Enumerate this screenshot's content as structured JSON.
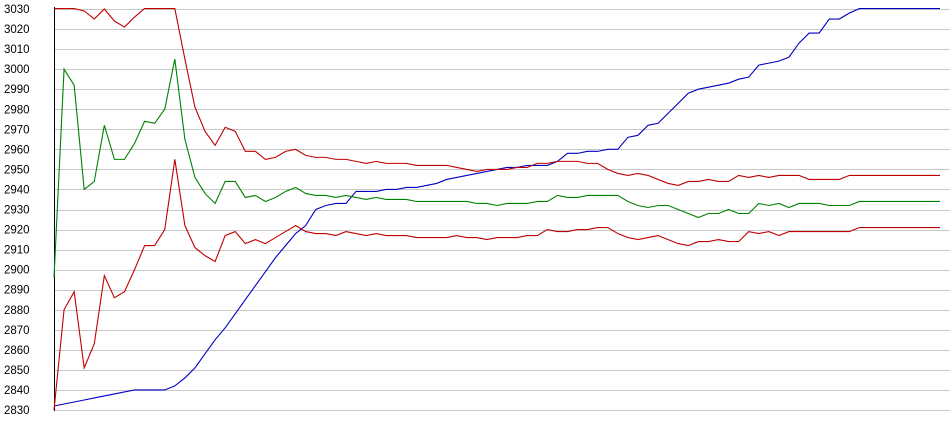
{
  "chart_data": {
    "type": "line",
    "title": "",
    "xlabel": "",
    "ylabel": "",
    "grid": true,
    "legend": "none",
    "ylim": [
      2830,
      3030
    ],
    "xlim": [
      0,
      88
    ],
    "y_ticks": [
      2830,
      2840,
      2850,
      2860,
      2870,
      2880,
      2890,
      2900,
      2910,
      2920,
      2930,
      2940,
      2950,
      2960,
      2970,
      2980,
      2990,
      3000,
      3010,
      3020,
      3030
    ],
    "x": [
      0,
      1,
      2,
      3,
      4,
      5,
      6,
      7,
      8,
      9,
      10,
      11,
      12,
      13,
      14,
      15,
      16,
      17,
      18,
      19,
      20,
      21,
      22,
      23,
      24,
      25,
      26,
      27,
      28,
      29,
      30,
      31,
      32,
      33,
      34,
      35,
      36,
      37,
      38,
      39,
      40,
      41,
      42,
      43,
      44,
      45,
      46,
      47,
      48,
      49,
      50,
      51,
      52,
      53,
      54,
      55,
      56,
      57,
      58,
      59,
      60,
      61,
      62,
      63,
      64,
      65,
      66,
      67,
      68,
      69,
      70,
      71,
      72,
      73,
      74,
      75,
      76,
      77,
      78,
      79,
      80,
      81,
      82,
      83,
      84,
      85,
      86,
      87,
      88
    ],
    "series": [
      {
        "color": "#0000c0",
        "values": [
          2832,
          2833,
          2834,
          2835,
          2836,
          2837,
          2838,
          2839,
          2840,
          2840,
          2840,
          2840,
          2842,
          2846,
          2851,
          2858,
          2865,
          2871,
          2878,
          2885,
          2892,
          2899,
          2906,
          2912,
          2918,
          2922,
          2930,
          2932,
          2933,
          2933,
          2939,
          2939,
          2939,
          2940,
          2940,
          2941,
          2941,
          2942,
          2943,
          2945,
          2946,
          2947,
          2948,
          2949,
          2950,
          2951,
          2951,
          2952,
          2952,
          2952,
          2954,
          2958,
          2958,
          2959,
          2959,
          2960,
          2960,
          2966,
          2967,
          2972,
          2973,
          2978,
          2983,
          2988,
          2990,
          2991,
          2992,
          2993,
          2995,
          2996,
          3002,
          3003,
          3004,
          3006,
          3013,
          3018,
          3018,
          3025,
          3025,
          3028,
          3031,
          3031,
          3031,
          3031,
          3031,
          3031,
          3031,
          3031,
          3031
        ]
      },
      {
        "color": "#c00000",
        "values": [
          3031,
          3031,
          3031,
          3029,
          3025,
          3030,
          3024,
          3021,
          3026,
          3031,
          3031,
          3031,
          3031,
          3005,
          2981,
          2969,
          2962,
          2971,
          2969,
          2959,
          2959,
          2955,
          2956,
          2959,
          2960,
          2957,
          2956,
          2956,
          2955,
          2955,
          2954,
          2953,
          2954,
          2953,
          2953,
          2953,
          2952,
          2952,
          2952,
          2952,
          2951,
          2950,
          2949,
          2950,
          2950,
          2950,
          2951,
          2951,
          2953,
          2953,
          2954,
          2954,
          2954,
          2953,
          2953,
          2950,
          2948,
          2947,
          2948,
          2947,
          2945,
          2943,
          2942,
          2944,
          2944,
          2945,
          2944,
          2944,
          2947,
          2946,
          2947,
          2946,
          2947,
          2947,
          2947,
          2945,
          2945,
          2945,
          2945,
          2947,
          2947,
          2947,
          2947,
          2947,
          2947,
          2947,
          2947,
          2947,
          2947
        ]
      },
      {
        "color": "#008000",
        "values": [
          2896,
          3000,
          2992,
          2940,
          2944,
          2972,
          2955,
          2955,
          2963,
          2974,
          2973,
          2980,
          3005,
          2965,
          2946,
          2938,
          2933,
          2944,
          2944,
          2936,
          2937,
          2934,
          2936,
          2939,
          2941,
          2938,
          2937,
          2937,
          2936,
          2937,
          2936,
          2935,
          2936,
          2935,
          2935,
          2935,
          2934,
          2934,
          2934,
          2934,
          2934,
          2934,
          2933,
          2933,
          2932,
          2933,
          2933,
          2933,
          2934,
          2934,
          2937,
          2936,
          2936,
          2937,
          2937,
          2937,
          2937,
          2934,
          2932,
          2931,
          2932,
          2932,
          2930,
          2928,
          2926,
          2928,
          2928,
          2930,
          2928,
          2928,
          2933,
          2932,
          2933,
          2931,
          2933,
          2933,
          2933,
          2932,
          2932,
          2932,
          2934,
          2934,
          2934,
          2934,
          2934,
          2934,
          2934,
          2934,
          2934
        ]
      },
      {
        "color": "#c00000",
        "values": [
          2830,
          2880,
          2889,
          2851,
          2863,
          2897,
          2886,
          2889,
          2900,
          2912,
          2912,
          2920,
          2955,
          2922,
          2911,
          2907,
          2904,
          2917,
          2919,
          2913,
          2915,
          2913,
          2916,
          2919,
          2922,
          2919,
          2918,
          2918,
          2917,
          2919,
          2918,
          2917,
          2918,
          2917,
          2917,
          2917,
          2916,
          2916,
          2916,
          2916,
          2917,
          2916,
          2916,
          2915,
          2916,
          2916,
          2916,
          2917,
          2917,
          2920,
          2919,
          2919,
          2920,
          2920,
          2921,
          2921,
          2918,
          2916,
          2915,
          2916,
          2917,
          2915,
          2913,
          2912,
          2914,
          2914,
          2915,
          2914,
          2914,
          2919,
          2918,
          2919,
          2917,
          2919,
          2919,
          2919,
          2919,
          2919,
          2919,
          2919,
          2921,
          2921,
          2921,
          2921,
          2921,
          2921,
          2921,
          2921,
          2921
        ]
      }
    ]
  }
}
